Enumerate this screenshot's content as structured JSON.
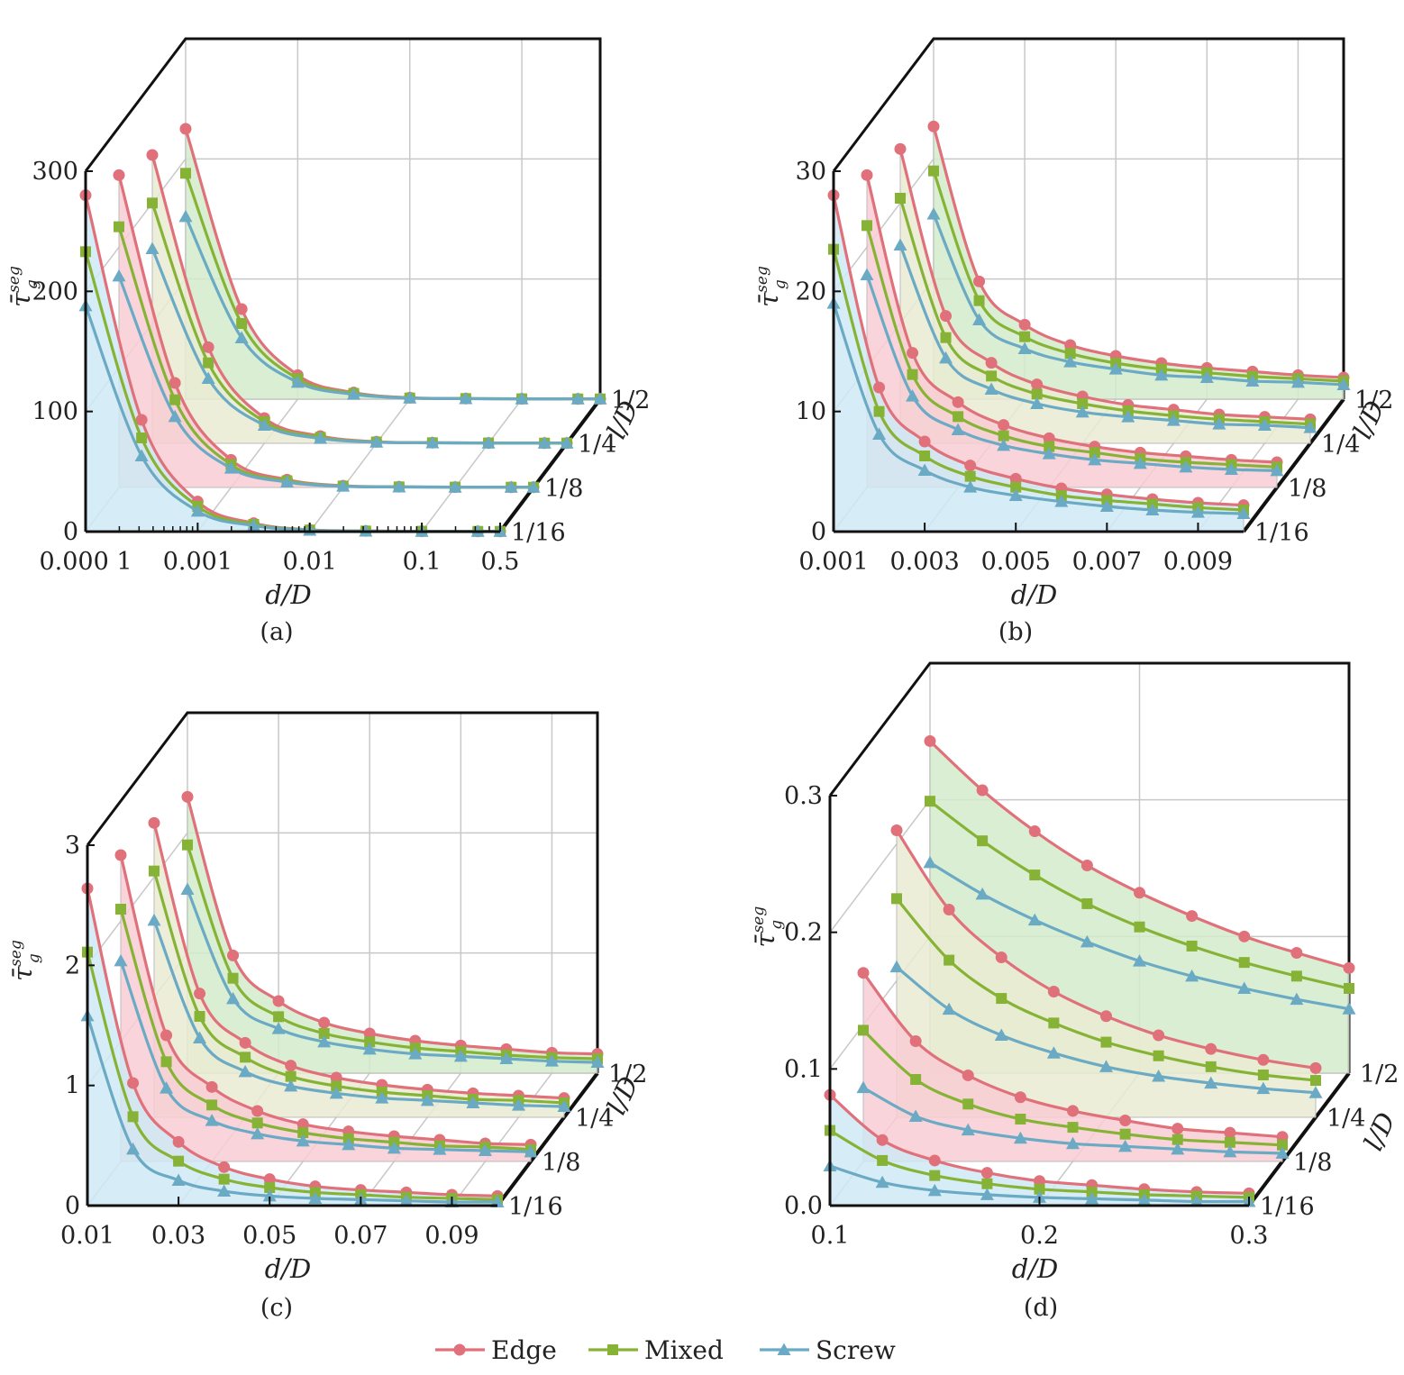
{
  "colors": {
    "edge": "#e0707a",
    "mixed": "#86b335",
    "screw": "#6aaac4",
    "fill_l1": "#cfe9f5",
    "fill_l2": "#f8cdd3",
    "fill_l3": "#e9ebd2",
    "fill_l4": "#d3ebcb"
  },
  "legend": [
    {
      "key": "edge",
      "label": "Edge",
      "marker": "circle"
    },
    {
      "key": "mixed",
      "label": "Mixed",
      "marker": "square"
    },
    {
      "key": "screw",
      "label": "Screw",
      "marker": "triangle"
    }
  ],
  "chart_data": [
    {
      "type": "line",
      "caption": "(a)",
      "xlabel": "d/D",
      "ylabel": "τ̄",
      "ylabel_sub": "g",
      "ylabel_sup": "seg",
      "zlabel": "l/D",
      "x_scale": "log",
      "x": [
        0.0001,
        0.000316,
        0.001,
        0.00316,
        0.01,
        0.0316,
        0.1,
        0.316,
        0.5
      ],
      "xticks": [
        0.0001,
        0.001,
        0.01,
        0.1,
        0.5
      ],
      "xtick_labels": [
        "0.000 1",
        "0.001",
        "0.01",
        "0.1",
        "0.5"
      ],
      "ylim": [
        0,
        300
      ],
      "yticks": [
        0,
        100,
        200,
        300
      ],
      "ytick_labels": [
        "0",
        "100",
        "200",
        "300"
      ],
      "layers": [
        "1/16",
        "1/8",
        "1/4",
        "1/2"
      ],
      "series": [
        {
          "layer": "1/16",
          "name": "Edge",
          "values": [
            280,
            93,
            25,
            7,
            1.5,
            0.6,
            0.3,
            0.2,
            0.2
          ]
        },
        {
          "layer": "1/16",
          "name": "Mixed",
          "values": [
            233,
            78,
            21,
            6,
            1.3,
            0.5,
            0.3,
            0.2,
            0.2
          ]
        },
        {
          "layer": "1/16",
          "name": "Screw",
          "values": [
            188,
            63,
            17,
            5,
            1.1,
            0.4,
            0.2,
            0.2,
            0.2
          ]
        },
        {
          "layer": "1/8",
          "name": "Edge",
          "values": [
            260,
            87,
            23,
            6.5,
            1.4,
            0.6,
            0.3,
            0.2,
            0.2
          ]
        },
        {
          "layer": "1/8",
          "name": "Mixed",
          "values": [
            217,
            73,
            19,
            5.5,
            1.2,
            0.5,
            0.3,
            0.2,
            0.2
          ]
        },
        {
          "layer": "1/8",
          "name": "Screw",
          "values": [
            176,
            59,
            16,
            4.5,
            1.0,
            0.4,
            0.2,
            0.2,
            0.2
          ]
        },
        {
          "layer": "1/4",
          "name": "Edge",
          "values": [
            240,
            80,
            21,
            6,
            1.3,
            0.5,
            0.3,
            0.2,
            0.2
          ]
        },
        {
          "layer": "1/4",
          "name": "Mixed",
          "values": [
            200,
            67,
            18,
            5,
            1.1,
            0.5,
            0.3,
            0.2,
            0.2
          ]
        },
        {
          "layer": "1/4",
          "name": "Screw",
          "values": [
            162,
            54,
            15,
            4,
            0.9,
            0.4,
            0.2,
            0.2,
            0.2
          ]
        },
        {
          "layer": "1/2",
          "name": "Edge",
          "values": [
            225,
            75,
            20,
            5.5,
            1.2,
            0.5,
            0.3,
            0.2,
            0.2
          ]
        },
        {
          "layer": "1/2",
          "name": "Mixed",
          "values": [
            188,
            63,
            17,
            4.8,
            1.0,
            0.5,
            0.3,
            0.2,
            0.2
          ]
        },
        {
          "layer": "1/2",
          "name": "Screw",
          "values": [
            152,
            51,
            14,
            4,
            0.9,
            0.4,
            0.2,
            0.2,
            0.2
          ]
        }
      ]
    },
    {
      "type": "line",
      "caption": "(b)",
      "xlabel": "d/D",
      "ylabel": "τ̄",
      "ylabel_sub": "g",
      "ylabel_sup": "seg",
      "zlabel": "l/D",
      "x_scale": "linear",
      "x": [
        0.001,
        0.002,
        0.003,
        0.004,
        0.005,
        0.006,
        0.007,
        0.008,
        0.009,
        0.01
      ],
      "xticks": [
        0.001,
        0.003,
        0.005,
        0.007,
        0.009
      ],
      "xtick_labels": [
        "0.001",
        "0.003",
        "0.005",
        "0.007",
        "0.009"
      ],
      "ylim": [
        0,
        30
      ],
      "yticks": [
        0,
        10,
        20,
        30
      ],
      "ytick_labels": [
        "0",
        "10",
        "20",
        "30"
      ],
      "layers": [
        "1/16",
        "1/8",
        "1/4",
        "1/2"
      ],
      "series": [
        {
          "layer": "1/16",
          "name": "Edge",
          "values": [
            28,
            12,
            7.5,
            5.5,
            4.4,
            3.6,
            3.1,
            2.7,
            2.4,
            2.2
          ]
        },
        {
          "layer": "1/16",
          "name": "Mixed",
          "values": [
            23.5,
            10,
            6.3,
            4.6,
            3.7,
            3.0,
            2.6,
            2.3,
            2.0,
            1.8
          ]
        },
        {
          "layer": "1/16",
          "name": "Screw",
          "values": [
            19,
            8.1,
            5.1,
            3.7,
            3.0,
            2.5,
            2.1,
            1.8,
            1.6,
            1.5
          ]
        },
        {
          "layer": "1/8",
          "name": "Edge",
          "values": [
            26,
            11.2,
            7.1,
            5.2,
            4.1,
            3.4,
            2.9,
            2.6,
            2.3,
            2.1
          ]
        },
        {
          "layer": "1/8",
          "name": "Mixed",
          "values": [
            21.8,
            9.4,
            5.9,
            4.3,
            3.4,
            2.9,
            2.4,
            2.1,
            1.9,
            1.7
          ]
        },
        {
          "layer": "1/8",
          "name": "Screw",
          "values": [
            17.7,
            7.6,
            4.8,
            3.5,
            2.8,
            2.3,
            2.0,
            1.7,
            1.5,
            1.4
          ]
        },
        {
          "layer": "1/4",
          "name": "Edge",
          "values": [
            24.5,
            10.6,
            6.7,
            4.9,
            3.9,
            3.2,
            2.8,
            2.4,
            2.2,
            2.0
          ]
        },
        {
          "layer": "1/4",
          "name": "Mixed",
          "values": [
            20.4,
            8.8,
            5.6,
            4.1,
            3.3,
            2.7,
            2.3,
            2.0,
            1.8,
            1.6
          ]
        },
        {
          "layer": "1/4",
          "name": "Screw",
          "values": [
            16.5,
            7.1,
            4.5,
            3.3,
            2.6,
            2.2,
            1.9,
            1.6,
            1.5,
            1.3
          ]
        },
        {
          "layer": "1/2",
          "name": "Edge",
          "values": [
            22.7,
            9.8,
            6.2,
            4.5,
            3.6,
            3.0,
            2.6,
            2.3,
            2.0,
            1.8
          ]
        },
        {
          "layer": "1/2",
          "name": "Mixed",
          "values": [
            19,
            8.2,
            5.2,
            3.8,
            3.0,
            2.5,
            2.2,
            1.9,
            1.7,
            1.5
          ]
        },
        {
          "layer": "1/2",
          "name": "Screw",
          "values": [
            15.4,
            6.6,
            4.2,
            3.1,
            2.5,
            2.0,
            1.8,
            1.5,
            1.4,
            1.2
          ]
        }
      ]
    },
    {
      "type": "line",
      "caption": "(c)",
      "xlabel": "d/D",
      "ylabel": "τ̄",
      "ylabel_sub": "g",
      "ylabel_sup": "seg",
      "zlabel": "l/D",
      "x_scale": "linear",
      "x": [
        0.01,
        0.02,
        0.03,
        0.04,
        0.05,
        0.06,
        0.07,
        0.08,
        0.09,
        0.1
      ],
      "xticks": [
        0.01,
        0.03,
        0.05,
        0.07,
        0.09
      ],
      "xtick_labels": [
        "0.01",
        "0.03",
        "0.05",
        "0.07",
        "0.09"
      ],
      "ylim": [
        0,
        3
      ],
      "yticks": [
        0,
        1,
        2,
        3
      ],
      "ytick_labels": [
        "0",
        "1",
        "2",
        "3"
      ],
      "layers": [
        "1/16",
        "1/8",
        "1/4",
        "1/2"
      ],
      "series": [
        {
          "layer": "1/16",
          "name": "Edge",
          "values": [
            2.64,
            1.02,
            0.53,
            0.32,
            0.22,
            0.16,
            0.13,
            0.11,
            0.09,
            0.08
          ]
        },
        {
          "layer": "1/16",
          "name": "Mixed",
          "values": [
            2.11,
            0.74,
            0.37,
            0.22,
            0.15,
            0.11,
            0.09,
            0.07,
            0.06,
            0.05
          ]
        },
        {
          "layer": "1/16",
          "name": "Screw",
          "values": [
            1.58,
            0.47,
            0.21,
            0.12,
            0.08,
            0.06,
            0.05,
            0.04,
            0.03,
            0.03
          ]
        },
        {
          "layer": "1/8",
          "name": "Edge",
          "values": [
            2.55,
            1.05,
            0.62,
            0.42,
            0.31,
            0.25,
            0.21,
            0.18,
            0.15,
            0.14
          ]
        },
        {
          "layer": "1/8",
          "name": "Mixed",
          "values": [
            2.1,
            0.83,
            0.47,
            0.32,
            0.24,
            0.19,
            0.16,
            0.13,
            0.12,
            0.1
          ]
        },
        {
          "layer": "1/8",
          "name": "Screw",
          "values": [
            1.67,
            0.61,
            0.34,
            0.23,
            0.17,
            0.14,
            0.11,
            0.1,
            0.09,
            0.08
          ]
        },
        {
          "layer": "1/4",
          "name": "Edge",
          "values": [
            2.45,
            1.03,
            0.62,
            0.43,
            0.33,
            0.27,
            0.23,
            0.2,
            0.18,
            0.16
          ]
        },
        {
          "layer": "1/4",
          "name": "Mixed",
          "values": [
            2.05,
            0.84,
            0.5,
            0.34,
            0.26,
            0.21,
            0.18,
            0.15,
            0.14,
            0.12
          ]
        },
        {
          "layer": "1/4",
          "name": "Screw",
          "values": [
            1.64,
            0.66,
            0.38,
            0.26,
            0.2,
            0.16,
            0.14,
            0.12,
            0.1,
            0.09
          ]
        },
        {
          "layer": "1/2",
          "name": "Edge",
          "values": [
            2.3,
            0.98,
            0.6,
            0.42,
            0.33,
            0.27,
            0.23,
            0.2,
            0.17,
            0.16
          ]
        },
        {
          "layer": "1/2",
          "name": "Mixed",
          "values": [
            1.9,
            0.79,
            0.47,
            0.33,
            0.26,
            0.21,
            0.18,
            0.15,
            0.13,
            0.12
          ]
        },
        {
          "layer": "1/2",
          "name": "Screw",
          "values": [
            1.53,
            0.62,
            0.37,
            0.26,
            0.2,
            0.16,
            0.14,
            0.12,
            0.1,
            0.09
          ]
        }
      ]
    },
    {
      "type": "line",
      "caption": "(d)",
      "xlabel": "d/D",
      "ylabel": "τ̄",
      "ylabel_sub": "g",
      "ylabel_sup": "seg",
      "zlabel": "l/D",
      "x_scale": "linear",
      "x": [
        0.1,
        0.125,
        0.15,
        0.175,
        0.2,
        0.225,
        0.25,
        0.275,
        0.3
      ],
      "xticks": [
        0.1,
        0.2,
        0.3
      ],
      "xtick_labels": [
        "0.1",
        "0.2",
        "0.3"
      ],
      "ylim": [
        0,
        0.3
      ],
      "yticks": [
        0,
        0.1,
        0.2,
        0.3
      ],
      "ytick_labels": [
        "0.0",
        "0.1",
        "0.2",
        "0.3"
      ],
      "layers": [
        "1/16",
        "1/8",
        "1/4",
        "1/2"
      ],
      "series": [
        {
          "layer": "1/16",
          "name": "Edge",
          "values": [
            0.081,
            0.048,
            0.033,
            0.024,
            0.018,
            0.015,
            0.012,
            0.01,
            0.009
          ]
        },
        {
          "layer": "1/16",
          "name": "Mixed",
          "values": [
            0.055,
            0.033,
            0.022,
            0.016,
            0.012,
            0.01,
            0.008,
            0.007,
            0.006
          ]
        },
        {
          "layer": "1/16",
          "name": "Screw",
          "values": [
            0.029,
            0.017,
            0.011,
            0.008,
            0.006,
            0.005,
            0.004,
            0.003,
            0.003
          ]
        },
        {
          "layer": "1/8",
          "name": "Edge",
          "values": [
            0.138,
            0.088,
            0.063,
            0.047,
            0.037,
            0.03,
            0.024,
            0.021,
            0.018
          ]
        },
        {
          "layer": "1/8",
          "name": "Mixed",
          "values": [
            0.096,
            0.06,
            0.042,
            0.031,
            0.025,
            0.02,
            0.016,
            0.014,
            0.012
          ]
        },
        {
          "layer": "1/8",
          "name": "Screw",
          "values": [
            0.054,
            0.033,
            0.023,
            0.017,
            0.013,
            0.011,
            0.009,
            0.007,
            0.006
          ]
        },
        {
          "layer": "1/4",
          "name": "Edge",
          "values": [
            0.21,
            0.152,
            0.117,
            0.092,
            0.074,
            0.06,
            0.05,
            0.042,
            0.036
          ]
        },
        {
          "layer": "1/4",
          "name": "Mixed",
          "values": [
            0.16,
            0.115,
            0.087,
            0.069,
            0.055,
            0.045,
            0.037,
            0.031,
            0.027
          ]
        },
        {
          "layer": "1/4",
          "name": "Screw",
          "values": [
            0.11,
            0.079,
            0.06,
            0.047,
            0.037,
            0.03,
            0.025,
            0.021,
            0.018
          ]
        },
        {
          "layer": "1/2",
          "name": "Edge",
          "values": [
            0.243,
            0.207,
            0.177,
            0.152,
            0.132,
            0.115,
            0.1,
            0.088,
            0.077
          ]
        },
        {
          "layer": "1/2",
          "name": "Mixed",
          "values": [
            0.199,
            0.17,
            0.145,
            0.124,
            0.107,
            0.093,
            0.081,
            0.071,
            0.062
          ]
        },
        {
          "layer": "1/2",
          "name": "Screw",
          "values": [
            0.154,
            0.131,
            0.112,
            0.096,
            0.082,
            0.071,
            0.062,
            0.054,
            0.047
          ]
        }
      ]
    }
  ]
}
